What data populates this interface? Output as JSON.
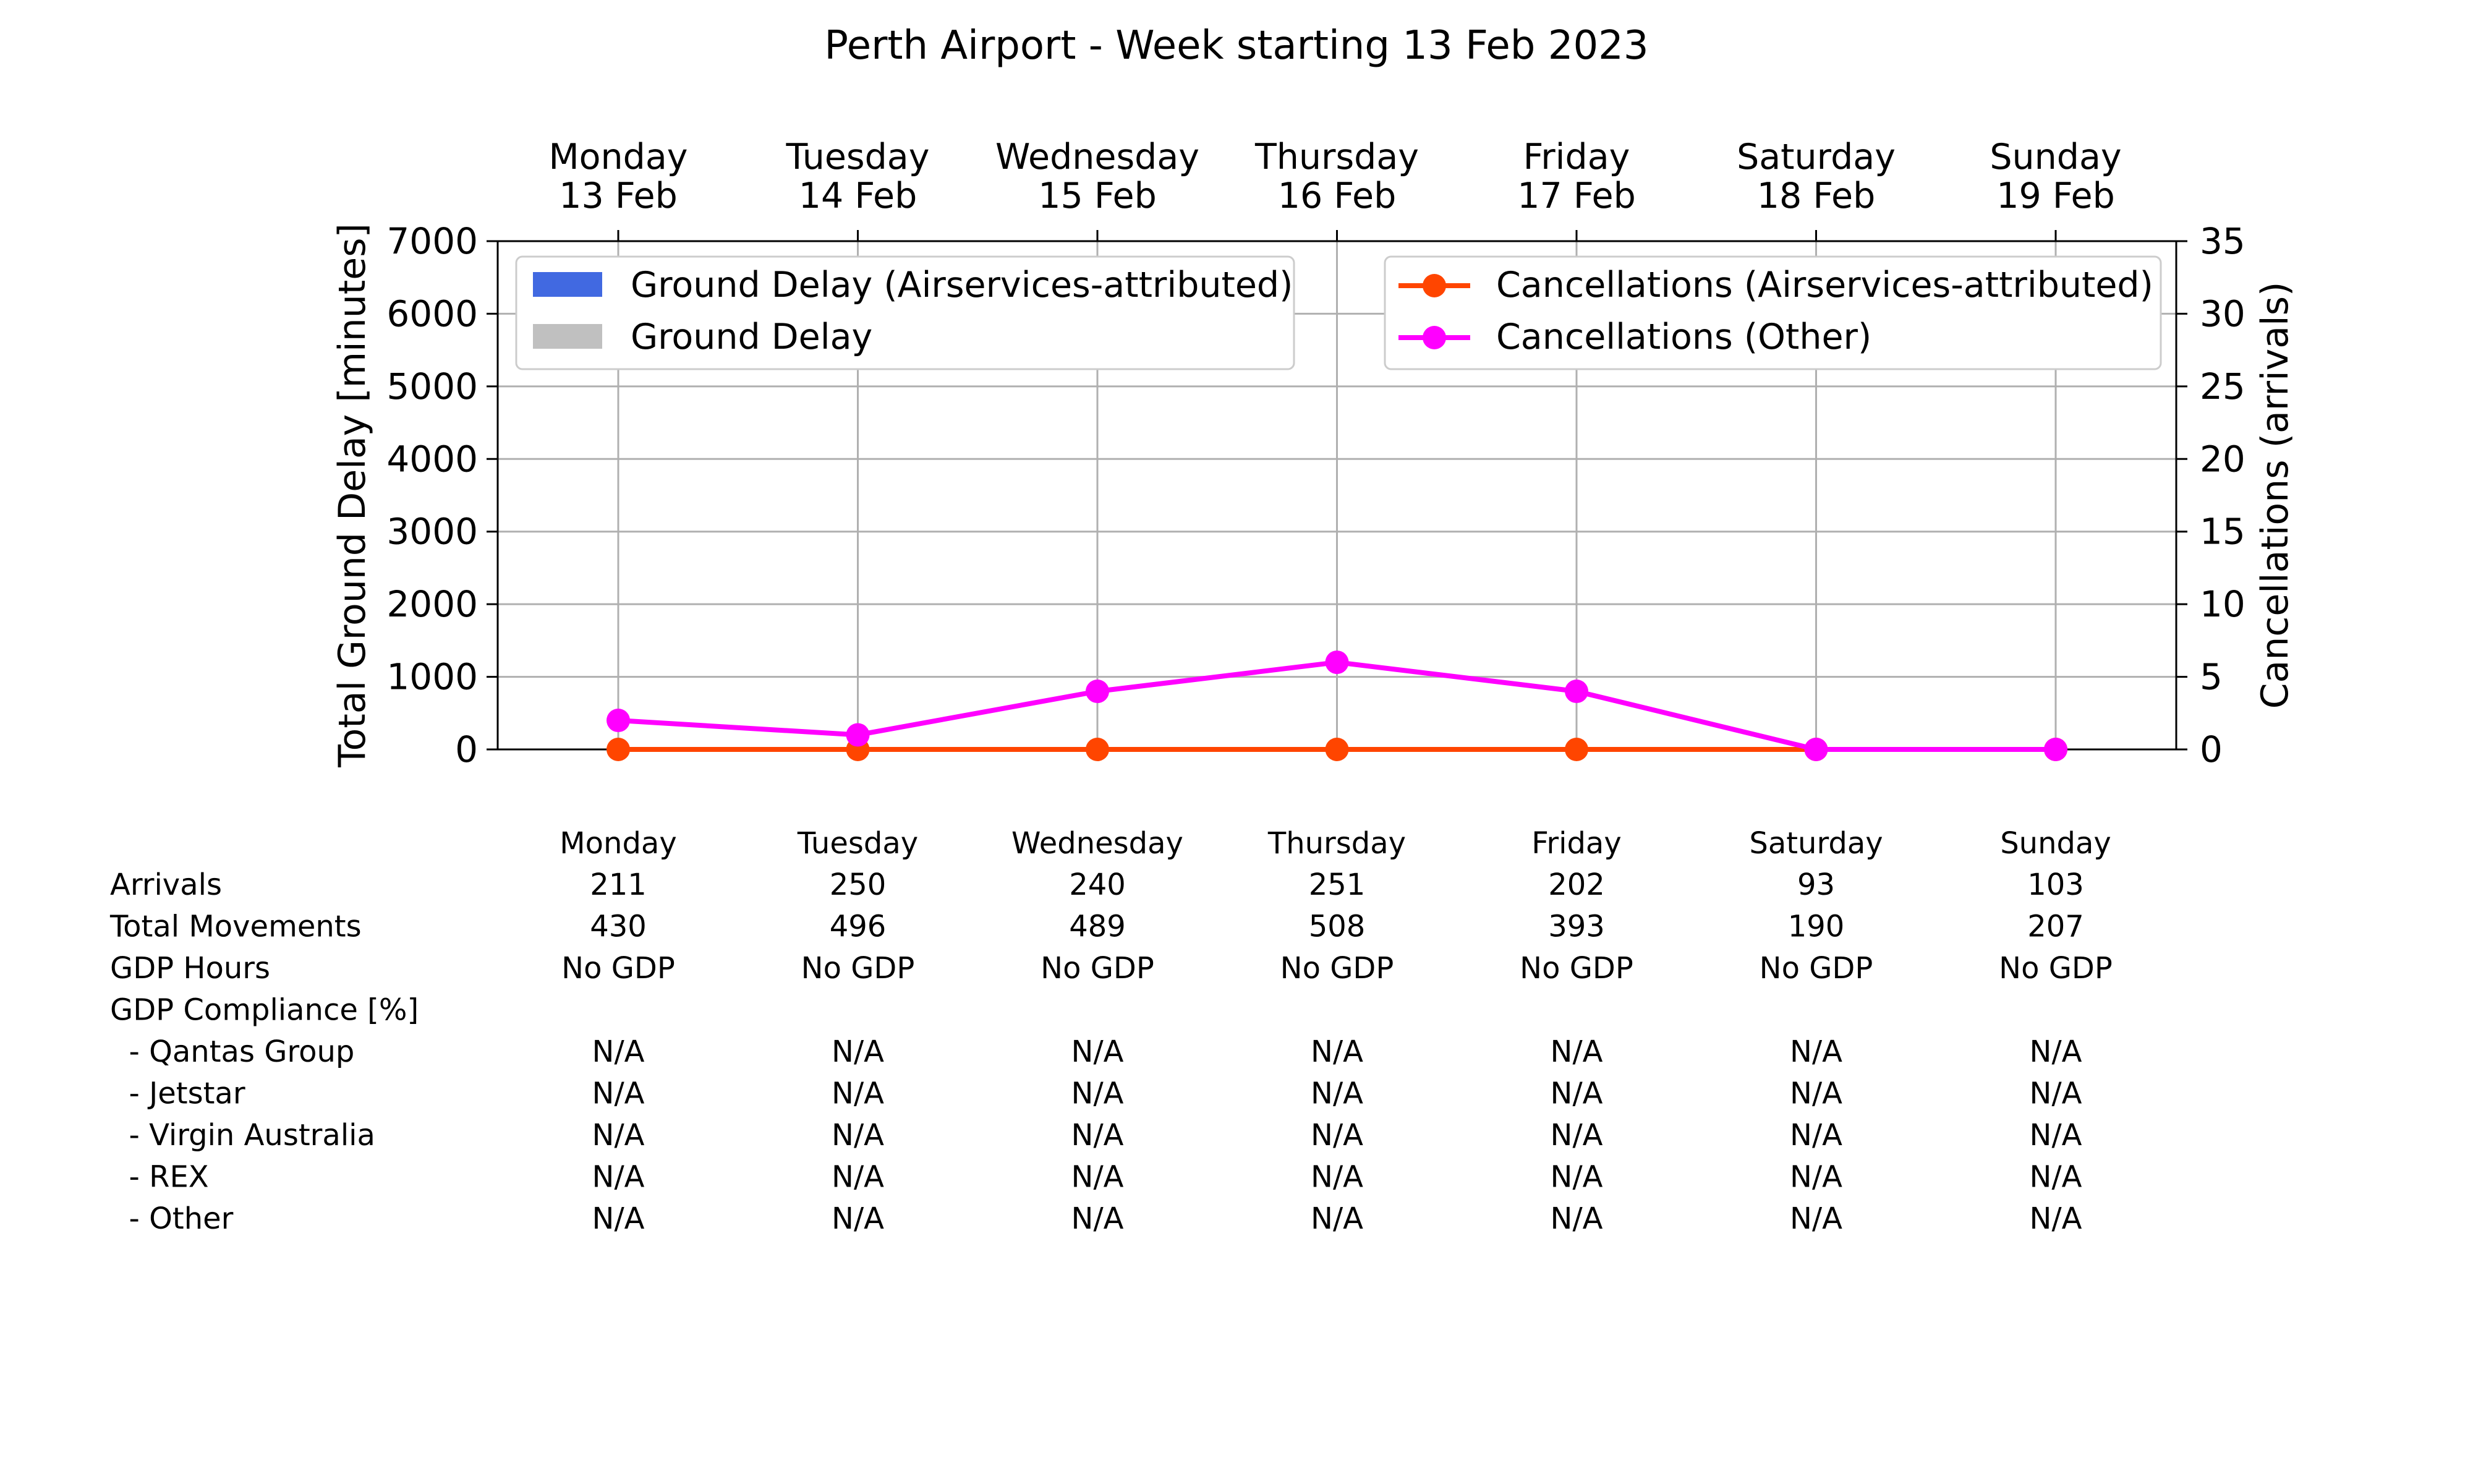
{
  "title": "Perth Airport - Week starting 13 Feb 2023",
  "chart_data": {
    "type": "bar",
    "categories": [
      "Monday\n13 Feb",
      "Tuesday\n14 Feb",
      "Wednesday\n15 Feb",
      "Thursday\n16 Feb",
      "Friday\n17 Feb",
      "Saturday\n18 Feb",
      "Sunday\n19 Feb"
    ],
    "ylabel_left": "Total Ground Delay [minutes]",
    "ylabel_right": "Cancellations (arrivals)",
    "ylim_left": [
      0,
      7000
    ],
    "ylim_right": [
      0,
      35
    ],
    "yticks_left": [
      0,
      1000,
      2000,
      3000,
      4000,
      5000,
      6000,
      7000
    ],
    "yticks_right": [
      0,
      5,
      10,
      15,
      20,
      25,
      30,
      35
    ],
    "grid": true,
    "bar_series": [
      {
        "name": "Ground Delay (Airservices-attributed)",
        "color": "#4169e1",
        "values": [
          0,
          0,
          0,
          0,
          0,
          0,
          0
        ]
      },
      {
        "name": "Ground Delay",
        "color": "#c0c0c0",
        "values": [
          0,
          0,
          0,
          0,
          0,
          0,
          0
        ]
      }
    ],
    "line_series": [
      {
        "name": "Cancellations (Airservices-attributed)",
        "color": "#ff4500",
        "values": [
          0,
          0,
          0,
          0,
          0,
          0,
          0
        ]
      },
      {
        "name": "Cancellations (Other)",
        "color": "#ff00ff",
        "values": [
          2,
          1,
          4,
          6,
          4,
          0,
          0
        ]
      }
    ],
    "legend_left_position": "upper-left",
    "legend_right_position": "upper-right"
  },
  "table": {
    "columns": [
      "Monday",
      "Tuesday",
      "Wednesday",
      "Thursday",
      "Friday",
      "Saturday",
      "Sunday"
    ],
    "rows": [
      {
        "label": "Arrivals",
        "values": [
          "211",
          "250",
          "240",
          "251",
          "202",
          "93",
          "103"
        ]
      },
      {
        "label": "Total Movements",
        "values": [
          "430",
          "496",
          "489",
          "508",
          "393",
          "190",
          "207"
        ]
      },
      {
        "label": "GDP Hours",
        "values": [
          "No GDP",
          "No GDP",
          "No GDP",
          "No GDP",
          "No GDP",
          "No GDP",
          "No GDP"
        ]
      },
      {
        "label": "GDP Compliance [%]",
        "values": [
          "",
          "",
          "",
          "",
          "",
          "",
          ""
        ]
      },
      {
        "label": "  - Qantas Group",
        "values": [
          "N/A",
          "N/A",
          "N/A",
          "N/A",
          "N/A",
          "N/A",
          "N/A"
        ]
      },
      {
        "label": "  - Jetstar",
        "values": [
          "N/A",
          "N/A",
          "N/A",
          "N/A",
          "N/A",
          "N/A",
          "N/A"
        ]
      },
      {
        "label": "  - Virgin Australia",
        "values": [
          "N/A",
          "N/A",
          "N/A",
          "N/A",
          "N/A",
          "N/A",
          "N/A"
        ]
      },
      {
        "label": "  - REX",
        "values": [
          "N/A",
          "N/A",
          "N/A",
          "N/A",
          "N/A",
          "N/A",
          "N/A"
        ]
      },
      {
        "label": "  - Other",
        "values": [
          "N/A",
          "N/A",
          "N/A",
          "N/A",
          "N/A",
          "N/A",
          "N/A"
        ]
      }
    ]
  }
}
